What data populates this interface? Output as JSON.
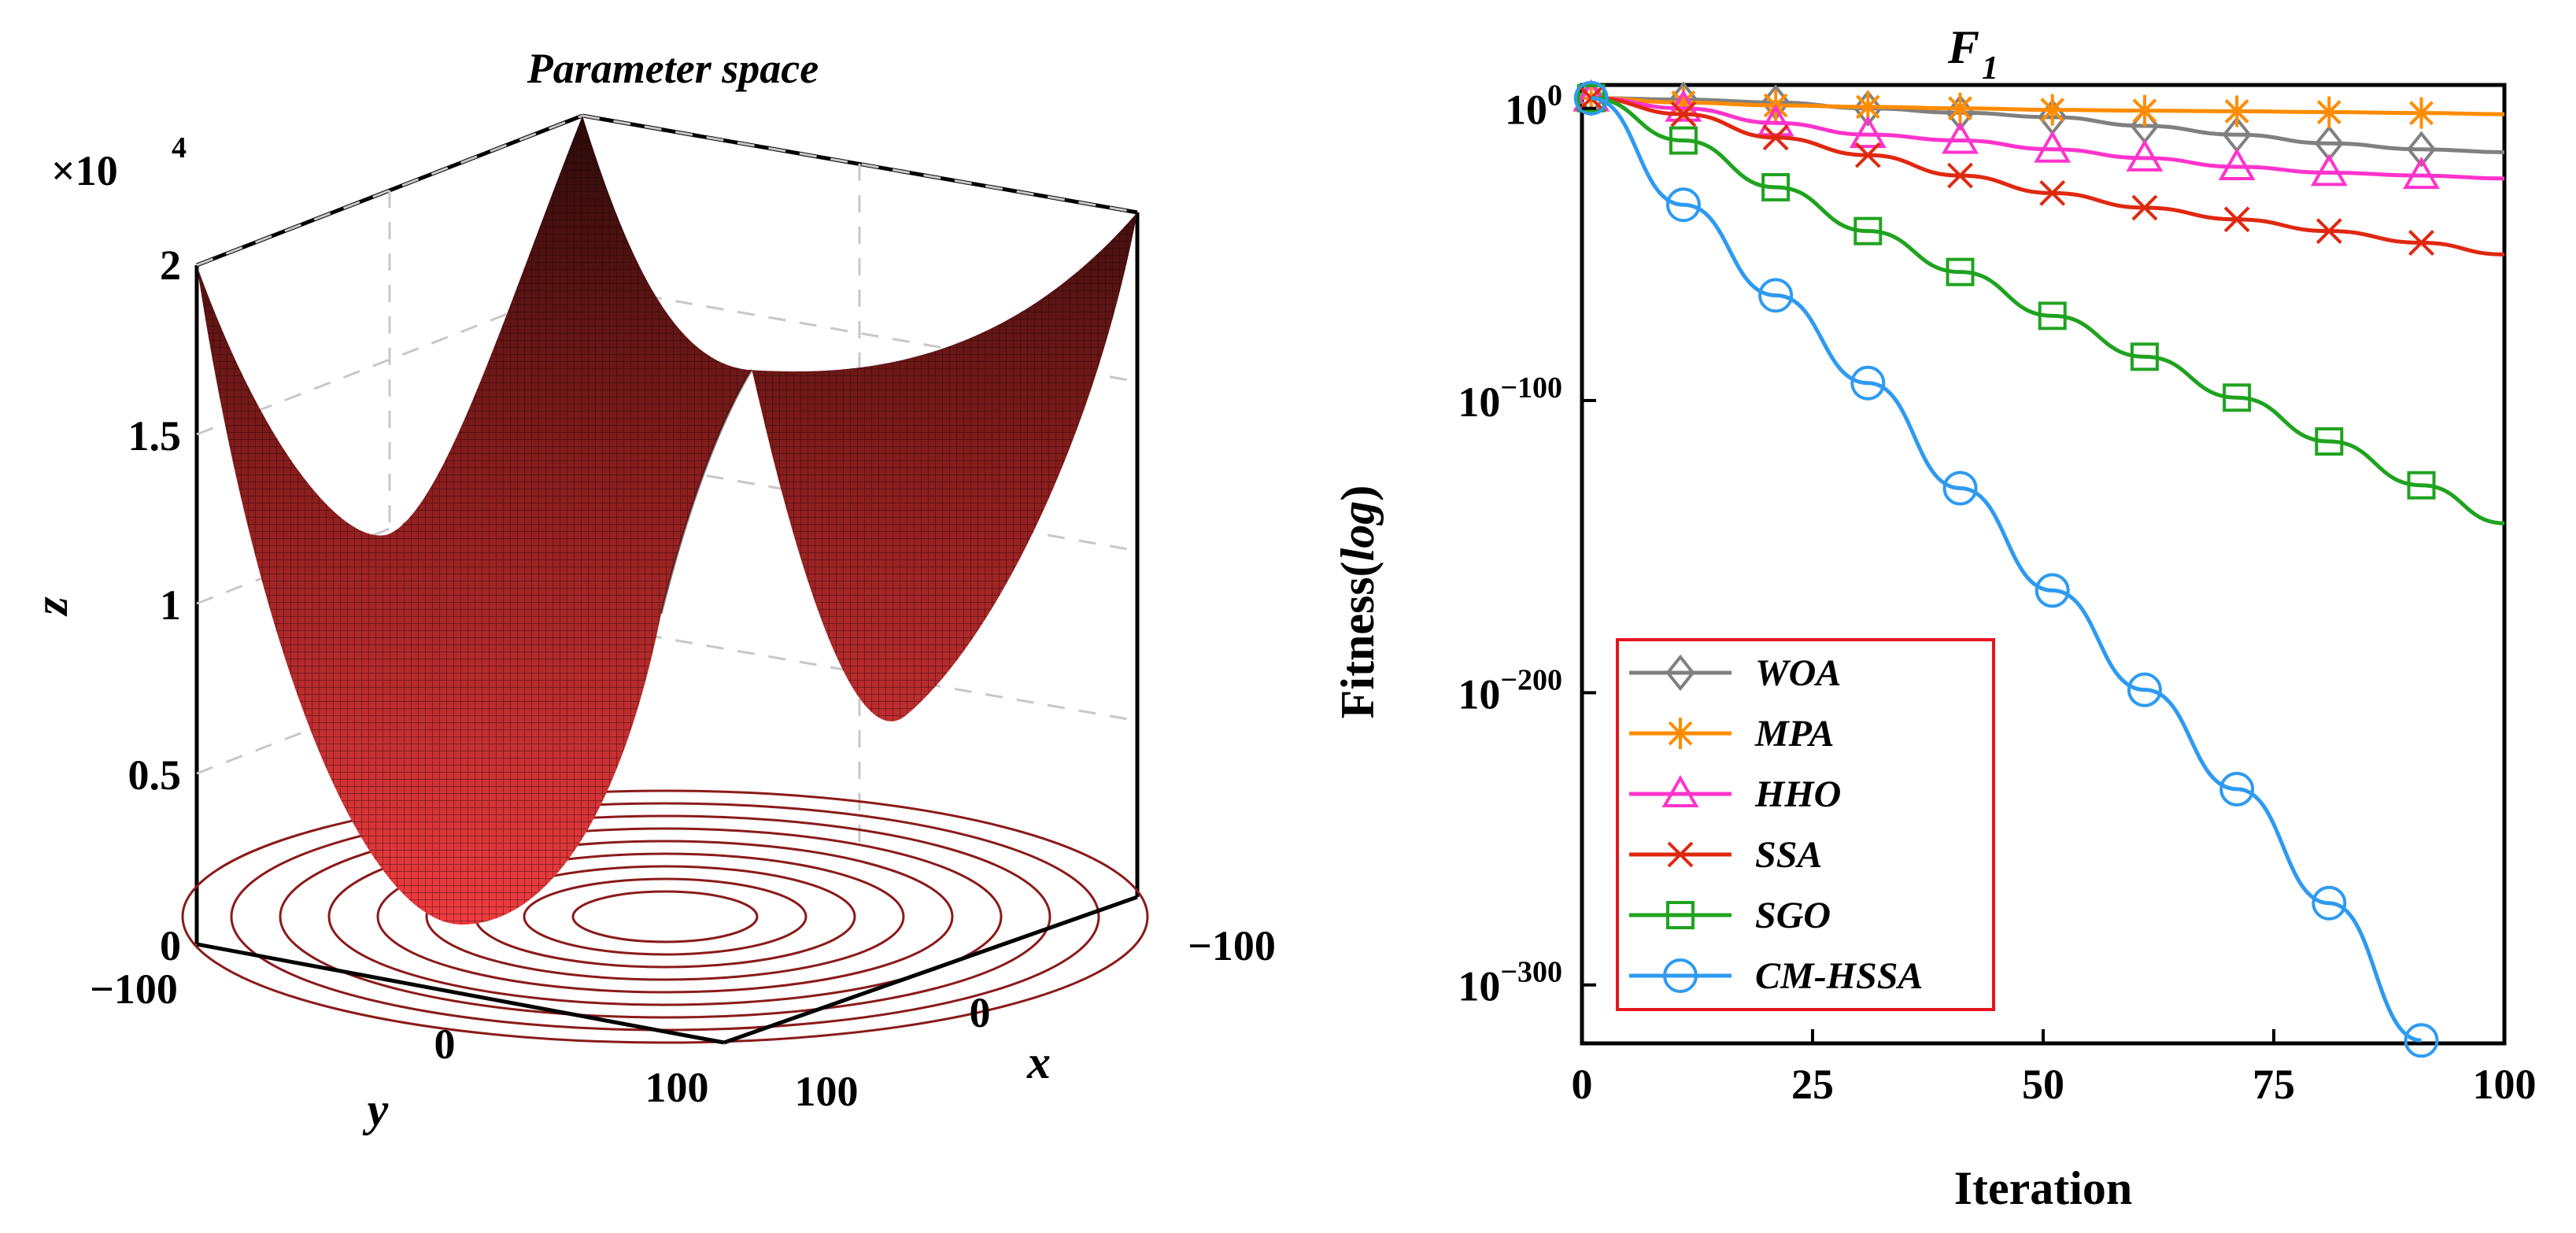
{
  "chart_data": [
    {
      "type": "surface3d",
      "title": "Parameter space",
      "xlabel": "x",
      "ylabel": "y",
      "zlabel": "z",
      "z_exponent_label": "×10",
      "z_exponent_power": "4",
      "x_ticks": [
        "−100",
        "0",
        "100"
      ],
      "y_ticks": [
        "−100",
        "0",
        "100"
      ],
      "z_ticks": [
        "0",
        "0.5",
        "1",
        "1.5",
        "2"
      ],
      "xlim": [
        -100,
        100
      ],
      "ylim": [
        -100,
        100
      ],
      "zlim": [
        0,
        20000
      ],
      "function": "z = x^2 + y^2",
      "colormap": [
        "#3a0f0f",
        "#e8353b"
      ],
      "contour_color": "#8b1a1a",
      "grid": true
    },
    {
      "type": "line",
      "title": "F",
      "title_subscript": "1",
      "xlabel": "Iteration",
      "ylabel": "Fitness(",
      "ylabel_italic": "log",
      "ylabel_close": ")",
      "y_scale": "log",
      "xlim": [
        0,
        100
      ],
      "ylim_log10": [
        -320,
        8
      ],
      "x_ticks": [
        "0",
        "25",
        "50",
        "75",
        "100"
      ],
      "x_tick_values": [
        0,
        25,
        50,
        75,
        100
      ],
      "y_tick_base": "10",
      "y_tick_exponents": [
        "0",
        "−100",
        "−200",
        "−300"
      ],
      "y_tick_values": [
        0,
        -100,
        -200,
        -300
      ],
      "legend_position": "lower-left",
      "series": [
        {
          "name": "WOA",
          "color": "#808080",
          "marker": "diamond",
          "x": [
            1,
            11,
            21,
            31,
            41,
            51,
            61,
            71,
            81,
            91,
            100
          ],
          "log10_y": [
            3.5,
            3,
            2,
            0,
            -1.5,
            -3,
            -6,
            -9,
            -12,
            -14,
            -15
          ]
        },
        {
          "name": "MPA",
          "color": "#ff8c00",
          "marker": "star",
          "x": [
            1,
            11,
            21,
            31,
            41,
            51,
            61,
            71,
            81,
            91,
            100
          ],
          "log10_y": [
            3.5,
            2,
            1,
            0.5,
            0,
            -0.5,
            -0.8,
            -1,
            -1.3,
            -1.6,
            -2
          ]
        },
        {
          "name": "HHO",
          "color": "#ff33cc",
          "marker": "triangle",
          "x": [
            1,
            11,
            21,
            31,
            41,
            51,
            61,
            71,
            81,
            91,
            100
          ],
          "log10_y": [
            3.5,
            0,
            -5,
            -9,
            -11,
            -14,
            -17,
            -20,
            -22,
            -23,
            -24
          ]
        },
        {
          "name": "SSA",
          "color": "#e02810",
          "marker": "cross",
          "x": [
            1,
            11,
            21,
            31,
            41,
            51,
            61,
            71,
            81,
            91,
            100
          ],
          "log10_y": [
            3.5,
            -2,
            -10,
            -16,
            -23,
            -29,
            -34,
            -38,
            -42,
            -46,
            -50
          ]
        },
        {
          "name": "SGO",
          "color": "#1fa31f",
          "marker": "square",
          "x": [
            1,
            11,
            21,
            31,
            41,
            51,
            61,
            71,
            81,
            91,
            100
          ],
          "log10_y": [
            3.5,
            -11,
            -27,
            -42,
            -56,
            -71,
            -85,
            -99,
            -114,
            -129,
            -142
          ]
        },
        {
          "name": "CM-HSSA",
          "color": "#2e9af0",
          "marker": "circle",
          "x": [
            1,
            11,
            21,
            31,
            41,
            51,
            61,
            71,
            81,
            91
          ],
          "log10_y": [
            3.5,
            -33,
            -64,
            -94,
            -130,
            -165,
            -199,
            -233,
            -272,
            -319
          ]
        }
      ]
    }
  ]
}
